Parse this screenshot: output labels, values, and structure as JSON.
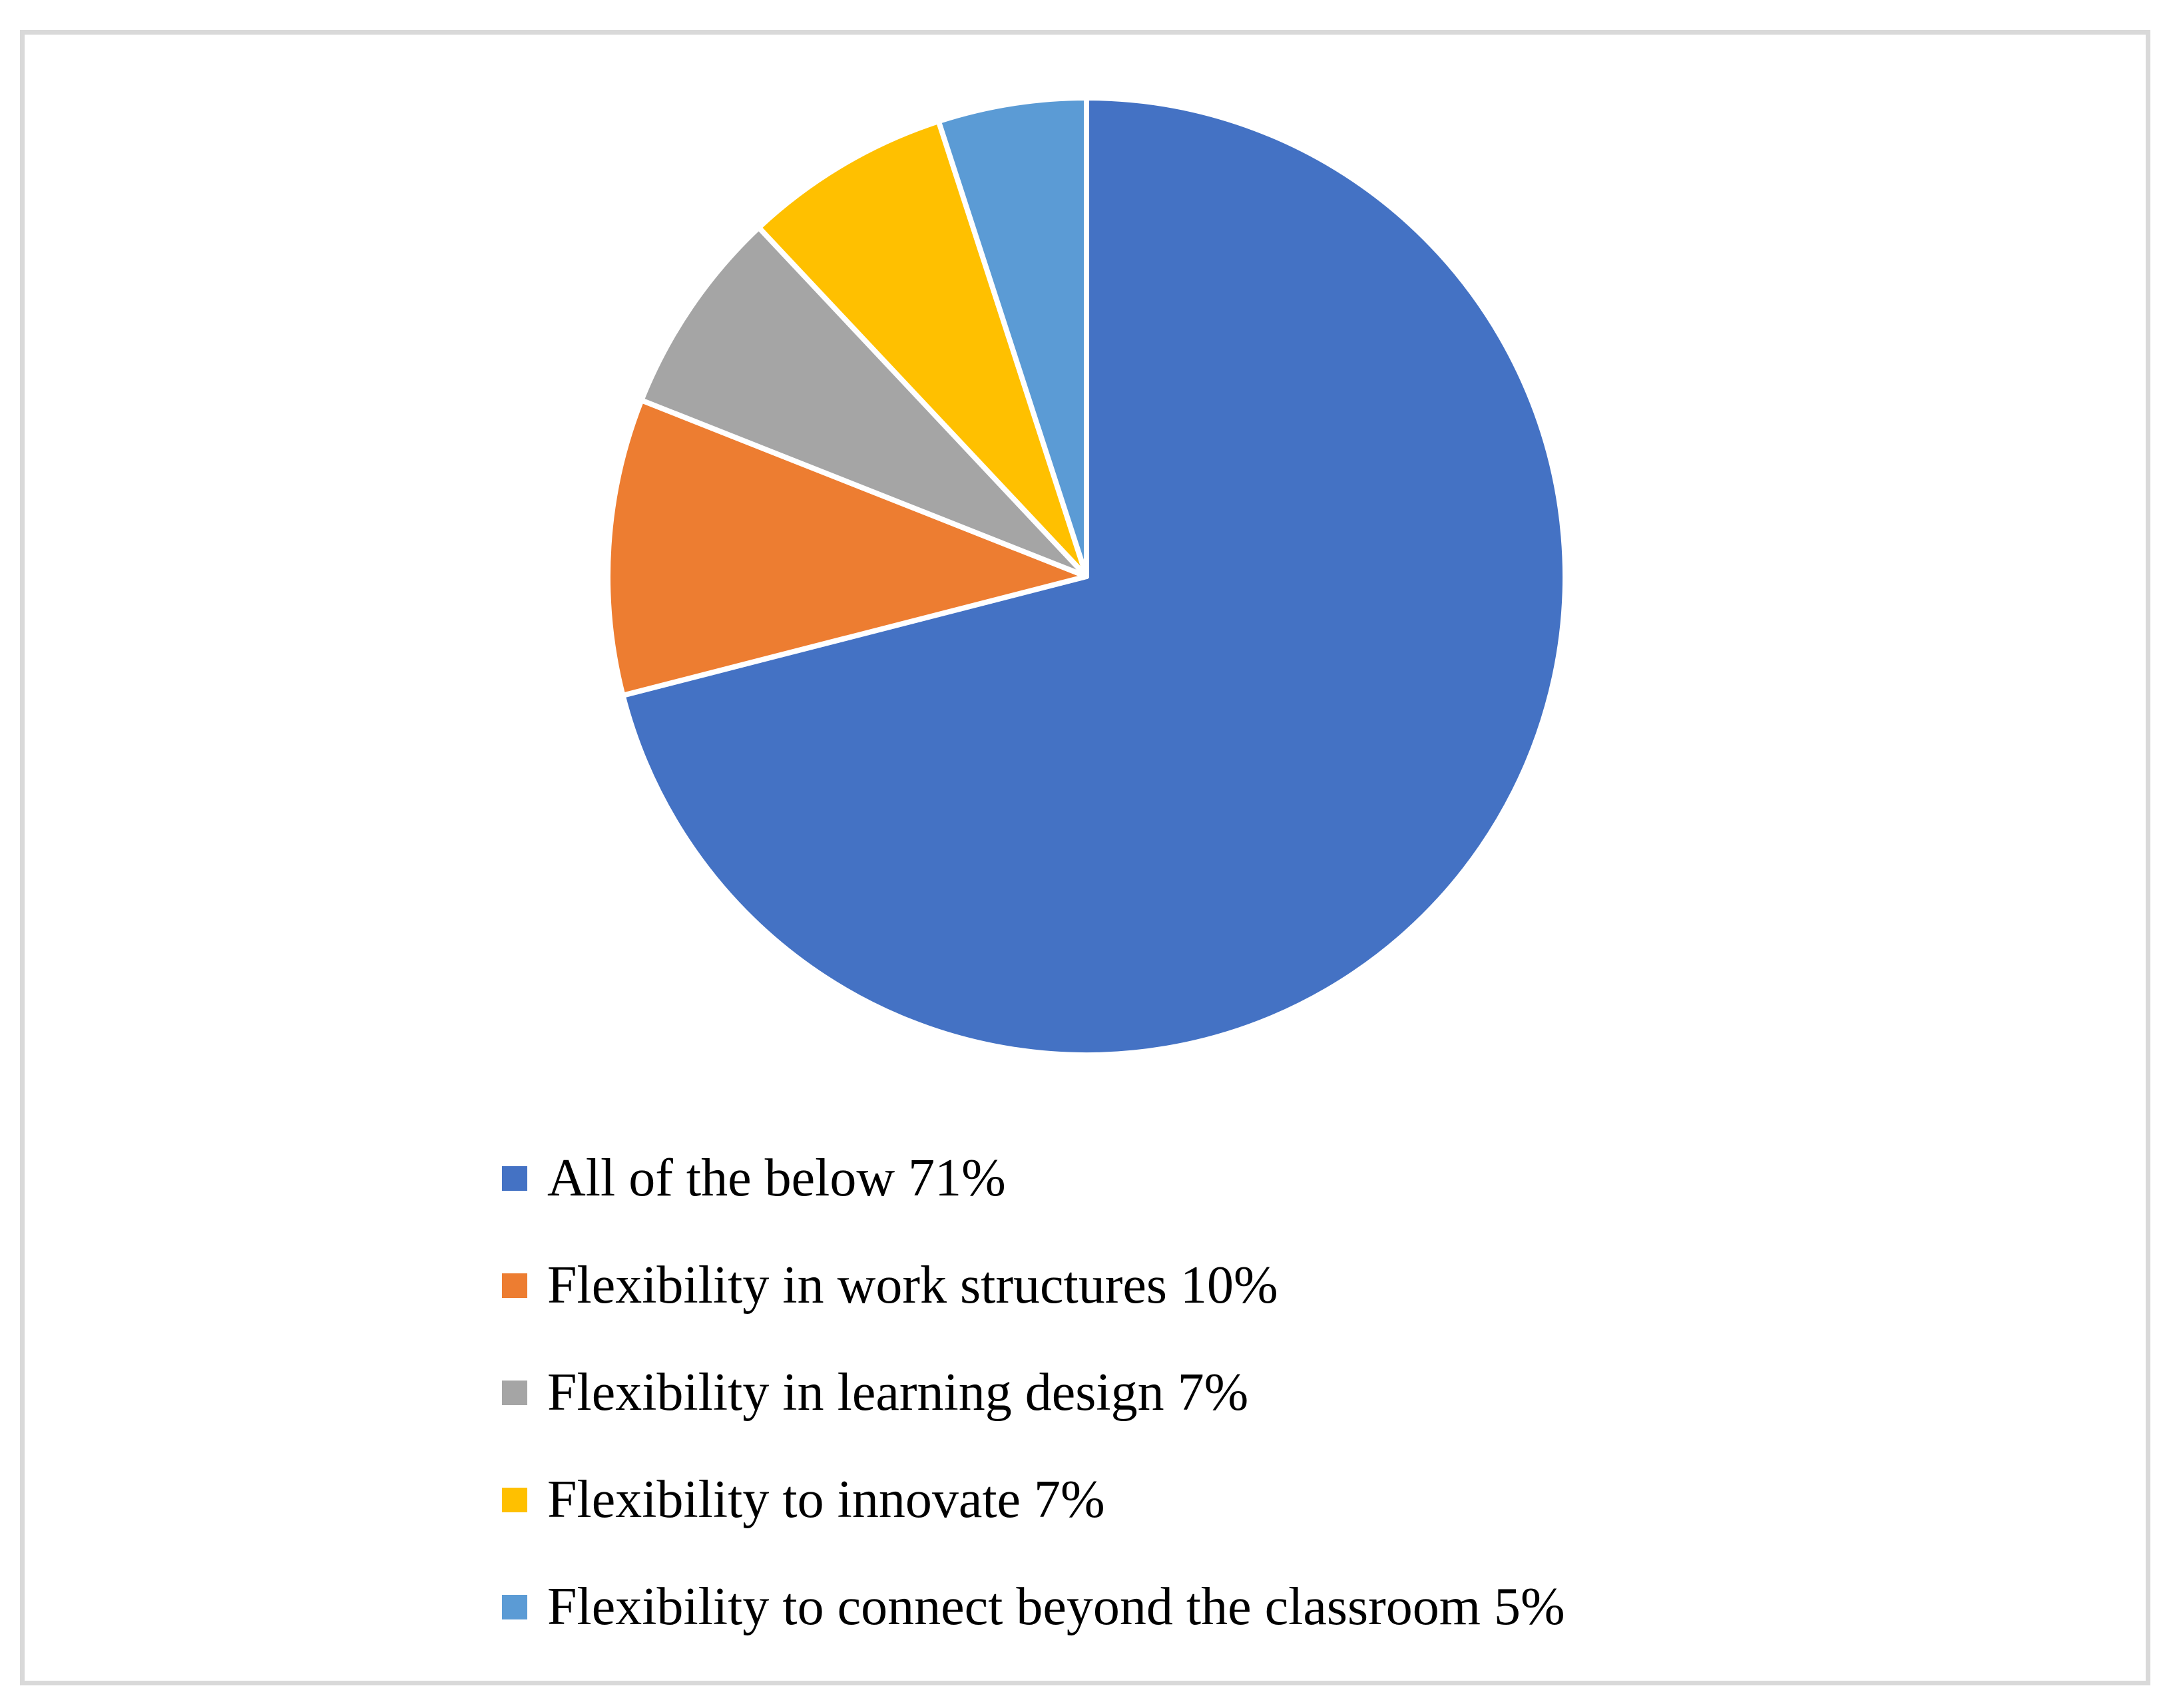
{
  "chart_data": {
    "type": "pie",
    "title": "",
    "start_angle": "12 o'clock",
    "direction": "clockwise",
    "categories": [
      "All of the below",
      "Flexibility in work structures",
      "Flexibility in learning design",
      "Flexibility to innovate",
      "Flexibility to connect beyond the classroom"
    ],
    "values": [
      71,
      10,
      7,
      7,
      5
    ],
    "unit": "%",
    "colors": [
      "#4472C4",
      "#ED7D31",
      "#A5A5A5",
      "#FFC000",
      "#5B9BD5"
    ],
    "legend_position": "bottom",
    "data_labels": false
  },
  "legend": {
    "items": [
      {
        "label": "All of the below 71%",
        "color": "#4472C4"
      },
      {
        "label": "Flexibility in work structures 10%",
        "color": "#ED7D31"
      },
      {
        "label": "Flexibility in learning design 7%",
        "color": "#A5A5A5"
      },
      {
        "label": "Flexibility to innovate 7%",
        "color": "#FFC000"
      },
      {
        "label": "Flexibility to connect beyond the classroom 5%",
        "color": "#5B9BD5"
      }
    ]
  },
  "style": {
    "frame_color": "#d9d9d9",
    "separator_color": "#ffffff"
  }
}
